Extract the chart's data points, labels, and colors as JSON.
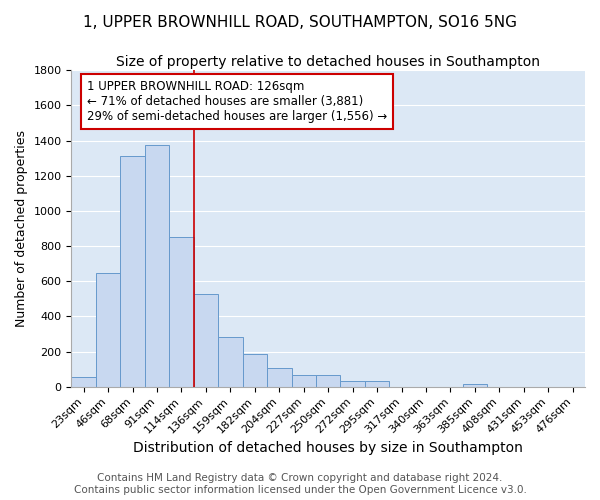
{
  "title1": "1, UPPER BROWNHILL ROAD, SOUTHAMPTON, SO16 5NG",
  "title2": "Size of property relative to detached houses in Southampton",
  "xlabel": "Distribution of detached houses by size in Southampton",
  "ylabel": "Number of detached properties",
  "categories": [
    "23sqm",
    "46sqm",
    "68sqm",
    "91sqm",
    "114sqm",
    "136sqm",
    "159sqm",
    "182sqm",
    "204sqm",
    "227sqm",
    "250sqm",
    "272sqm",
    "295sqm",
    "317sqm",
    "340sqm",
    "363sqm",
    "385sqm",
    "408sqm",
    "431sqm",
    "453sqm",
    "476sqm"
  ],
  "values": [
    55,
    645,
    1310,
    1375,
    850,
    530,
    280,
    185,
    105,
    65,
    65,
    35,
    30,
    0,
    0,
    0,
    15,
    0,
    0,
    0,
    0
  ],
  "bar_color": "#c8d8f0",
  "bar_edge_color": "#6699cc",
  "background_color": "#dce8f5",
  "grid_color": "#ffffff",
  "vline_x_index": 4.5,
  "vline_color": "#cc0000",
  "annotation_lines": [
    "1 UPPER BROWNHILL ROAD: 126sqm",
    "← 71% of detached houses are smaller (3,881)",
    "29% of semi-detached houses are larger (1,556) →"
  ],
  "annotation_box_color": "#cc0000",
  "ylim": [
    0,
    1800
  ],
  "yticks": [
    0,
    200,
    400,
    600,
    800,
    1000,
    1200,
    1400,
    1600,
    1800
  ],
  "footer1": "Contains HM Land Registry data © Crown copyright and database right 2024.",
  "footer2": "Contains public sector information licensed under the Open Government Licence v3.0.",
  "title1_fontsize": 11,
  "title2_fontsize": 10,
  "xlabel_fontsize": 10,
  "ylabel_fontsize": 9,
  "tick_fontsize": 8,
  "footer_fontsize": 7.5
}
